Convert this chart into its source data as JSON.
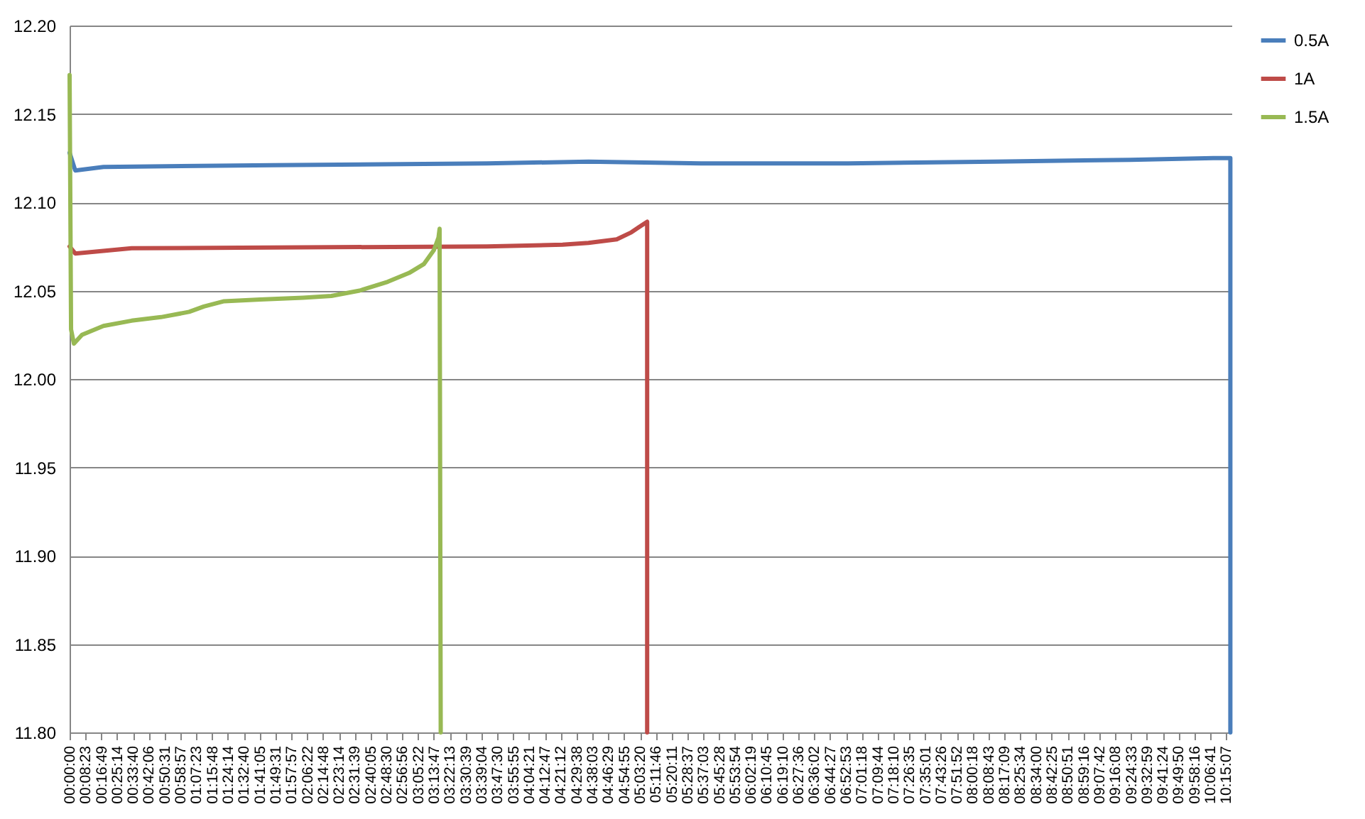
{
  "chart_data": {
    "type": "line",
    "legend": "right",
    "grid": "y",
    "xlim": [
      0,
      10.3
    ],
    "xticks": [
      {
        "value": 0,
        "label": "00:00:00"
      },
      {
        "value": 0.1397,
        "label": "00:08:23"
      },
      {
        "value": 0.2803,
        "label": "00:16:49"
      },
      {
        "value": 0.4206,
        "label": "00:25:14"
      },
      {
        "value": 0.5611,
        "label": "00:33:40"
      },
      {
        "value": 0.7017,
        "label": "00:42:06"
      },
      {
        "value": 0.8419,
        "label": "00:50:31"
      },
      {
        "value": 0.9825,
        "label": "00:58:57"
      },
      {
        "value": 1.1231,
        "label": "01:07:23"
      },
      {
        "value": 1.2633,
        "label": "01:15:48"
      },
      {
        "value": 1.4039,
        "label": "01:24:14"
      },
      {
        "value": 1.5444,
        "label": "01:32:40"
      },
      {
        "value": 1.6847,
        "label": "01:41:05"
      },
      {
        "value": 1.8253,
        "label": "01:49:31"
      },
      {
        "value": 1.9658,
        "label": "01:57:57"
      },
      {
        "value": 2.1061,
        "label": "02:06:22"
      },
      {
        "value": 2.2467,
        "label": "02:14:48"
      },
      {
        "value": 2.3872,
        "label": "02:23:14"
      },
      {
        "value": 2.5275,
        "label": "02:31:39"
      },
      {
        "value": 2.6681,
        "label": "02:40:05"
      },
      {
        "value": 2.8083,
        "label": "02:48:30"
      },
      {
        "value": 2.9489,
        "label": "02:56:56"
      },
      {
        "value": 3.0894,
        "label": "03:05:22"
      },
      {
        "value": 3.2297,
        "label": "03:13:47"
      },
      {
        "value": 3.3703,
        "label": "03:22:13"
      },
      {
        "value": 3.5108,
        "label": "03:30:39"
      },
      {
        "value": 3.6511,
        "label": "03:39:04"
      },
      {
        "value": 3.7917,
        "label": "03:47:30"
      },
      {
        "value": 3.9319,
        "label": "03:55:55"
      },
      {
        "value": 4.0725,
        "label": "04:04:21"
      },
      {
        "value": 4.2131,
        "label": "04:12:47"
      },
      {
        "value": 4.3533,
        "label": "04:21:12"
      },
      {
        "value": 4.4939,
        "label": "04:29:38"
      },
      {
        "value": 4.6342,
        "label": "04:38:03"
      },
      {
        "value": 4.7747,
        "label": "04:46:29"
      },
      {
        "value": 4.9153,
        "label": "04:54:55"
      },
      {
        "value": 5.0556,
        "label": "05:03:20"
      },
      {
        "value": 5.1961,
        "label": "05:11:46"
      },
      {
        "value": 5.3364,
        "label": "05:20:11"
      },
      {
        "value": 5.4769,
        "label": "05:28:37"
      },
      {
        "value": 5.6175,
        "label": "05:37:03"
      },
      {
        "value": 5.7578,
        "label": "05:45:28"
      },
      {
        "value": 5.8983,
        "label": "05:53:54"
      },
      {
        "value": 6.0386,
        "label": "06:02:19"
      },
      {
        "value": 6.1792,
        "label": "06:10:45"
      },
      {
        "value": 6.3194,
        "label": "06:19:10"
      },
      {
        "value": 6.46,
        "label": "06:27:36"
      },
      {
        "value": 6.6006,
        "label": "06:36:02"
      },
      {
        "value": 6.7408,
        "label": "06:44:27"
      },
      {
        "value": 6.8814,
        "label": "06:52:53"
      },
      {
        "value": 7.0217,
        "label": "07:01:18"
      },
      {
        "value": 7.1622,
        "label": "07:09:44"
      },
      {
        "value": 7.3028,
        "label": "07:18:10"
      },
      {
        "value": 7.4431,
        "label": "07:26:35"
      },
      {
        "value": 7.5836,
        "label": "07:35:01"
      },
      {
        "value": 7.7239,
        "label": "07:43:26"
      },
      {
        "value": 7.8644,
        "label": "07:51:52"
      },
      {
        "value": 8.005,
        "label": "08:00:18"
      },
      {
        "value": 8.1453,
        "label": "08:08:43"
      },
      {
        "value": 8.2858,
        "label": "08:17:09"
      },
      {
        "value": 8.4261,
        "label": "08:25:34"
      },
      {
        "value": 8.5667,
        "label": "08:34:00"
      },
      {
        "value": 8.7069,
        "label": "08:42:25"
      },
      {
        "value": 8.8475,
        "label": "08:50:51"
      },
      {
        "value": 8.9878,
        "label": "08:59:16"
      },
      {
        "value": 9.1283,
        "label": "09:07:42"
      },
      {
        "value": 9.2689,
        "label": "09:16:08"
      },
      {
        "value": 9.4092,
        "label": "09:24:33"
      },
      {
        "value": 9.5497,
        "label": "09:32:59"
      },
      {
        "value": 9.69,
        "label": "09:41:24"
      },
      {
        "value": 9.8306,
        "label": "09:49:50"
      },
      {
        "value": 9.9711,
        "label": "09:58:16"
      },
      {
        "value": 10.1114,
        "label": "10:06:41"
      },
      {
        "value": 10.2519,
        "label": "10:15:07"
      }
    ],
    "ylim": [
      11.8,
      12.2
    ],
    "yticks": [
      {
        "value": 11.8,
        "label": "11.80"
      },
      {
        "value": 11.85,
        "label": "11.85"
      },
      {
        "value": 11.9,
        "label": "11.90"
      },
      {
        "value": 11.95,
        "label": "11.95"
      },
      {
        "value": 12,
        "label": "12.00"
      },
      {
        "value": 12.05,
        "label": "12.05"
      },
      {
        "value": 12.1,
        "label": "12.10"
      },
      {
        "value": 12.15,
        "label": "12.15"
      },
      {
        "value": 12.2,
        "label": "12.20"
      }
    ],
    "series": [
      {
        "name": "0.5A",
        "color": "#4a7ebb",
        "x": [
          0,
          0.05,
          0.3,
          1.8,
          3.7,
          4.6,
          5.6,
          6.9,
          8.2,
          9.4,
          10.14,
          10.29,
          10.29
        ],
        "values": [
          12.128,
          12.118,
          12.12,
          12.121,
          12.122,
          12.123,
          12.122,
          12.122,
          12.123,
          12.124,
          12.125,
          12.125,
          11.8
        ]
      },
      {
        "name": "1A",
        "color": "#be4b48",
        "x": [
          0,
          0.05,
          0.55,
          3.7,
          4.37,
          4.6,
          4.85,
          4.98,
          5.05,
          5.12,
          5.12
        ],
        "values": [
          12.075,
          12.071,
          12.074,
          12.075,
          12.076,
          12.077,
          12.079,
          12.083,
          12.086,
          12.089,
          11.8
        ]
      },
      {
        "name": "1.5A",
        "color": "#98b954",
        "x": [
          0,
          0.013,
          0.038,
          0.11,
          0.3,
          0.55,
          0.81,
          1.06,
          1.19,
          1.37,
          1.69,
          2.07,
          2.32,
          2.57,
          2.82,
          3.01,
          3.14,
          3.23,
          3.27,
          3.28,
          3.29
        ],
        "values": [
          12.172,
          12.028,
          12.02,
          12.025,
          12.03,
          12.033,
          12.035,
          12.038,
          12.041,
          12.044,
          12.045,
          12.046,
          12.047,
          12.05,
          12.055,
          12.06,
          12.065,
          12.073,
          12.08,
          12.085,
          11.8
        ]
      }
    ]
  }
}
